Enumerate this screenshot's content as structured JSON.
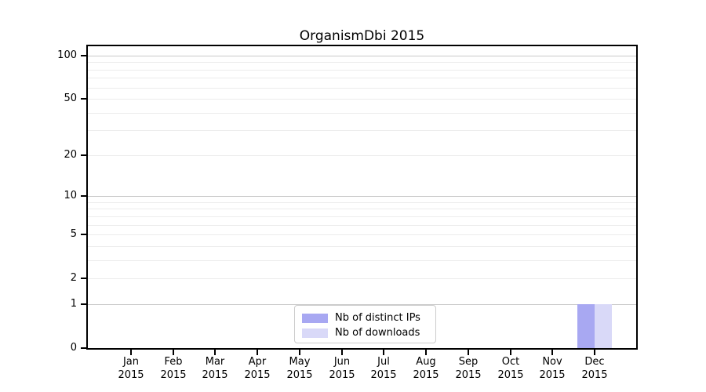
{
  "figure": {
    "title": "OrganismDbi 2015",
    "background_color": "#ffffff"
  },
  "chart_data": {
    "type": "bar",
    "title": "OrganismDbi 2015",
    "xlabel": "",
    "ylabel": "",
    "categories": [
      "Jan",
      "Feb",
      "Mar",
      "Apr",
      "May",
      "Jun",
      "Jul",
      "Aug",
      "Sep",
      "Oct",
      "Nov",
      "Dec"
    ],
    "category_year": "2015",
    "series": [
      {
        "name": "Nb of distinct IPs",
        "color": "#a8a8f2",
        "values": [
          0,
          0,
          0,
          0,
          0,
          0,
          0,
          0,
          0,
          0,
          0,
          1
        ]
      },
      {
        "name": "Nb of downloads",
        "color": "#d9d9f8",
        "values": [
          0,
          0,
          0,
          0,
          0,
          0,
          0,
          0,
          0,
          0,
          0,
          1
        ]
      }
    ],
    "yscale": "log1p",
    "ylim": [
      0,
      116
    ],
    "ytick_labels": [
      "0",
      "1",
      "2",
      "5",
      "10",
      "20",
      "50",
      "100"
    ],
    "ytick_values": [
      0,
      1,
      2,
      5,
      10,
      20,
      50,
      100
    ],
    "major_grid_values": [
      1,
      10,
      100
    ],
    "minor_grid_values": [
      2,
      3,
      4,
      5,
      6,
      7,
      8,
      9,
      20,
      30,
      40,
      50,
      60,
      70,
      80,
      90
    ],
    "grid": true,
    "grid_color_major": "#c9c9c9",
    "grid_color_minor": "#ececec",
    "spine_color": "#000000",
    "legend_position": "lower center",
    "legend_border_color": "#cccccc"
  }
}
